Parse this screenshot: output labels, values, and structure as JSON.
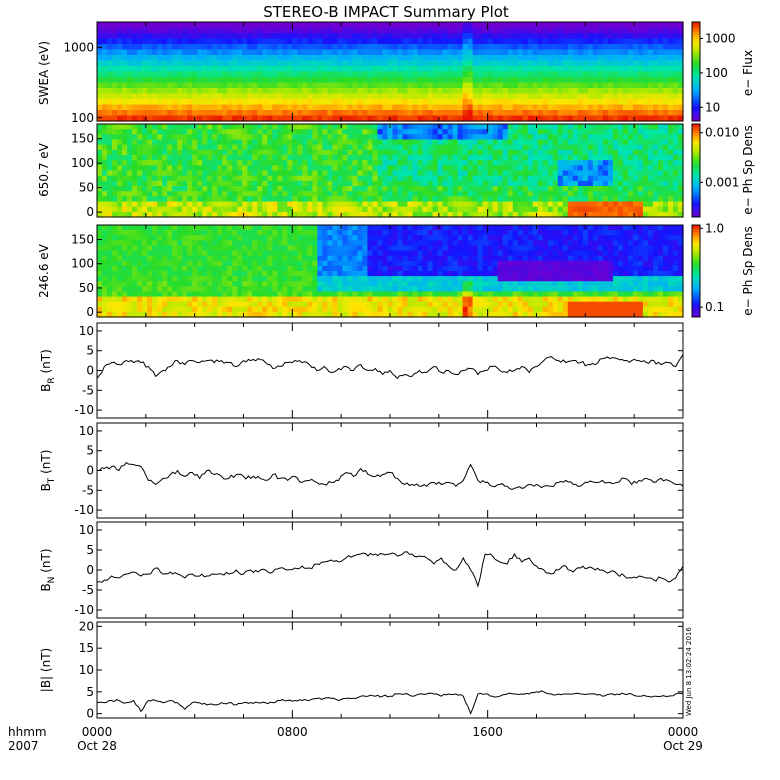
{
  "title": "STEREO-B IMPACT Summary Plot",
  "timestamp": "Wed Jun 8 13:02:24 2016",
  "time_axis": {
    "corner_label_top": "hhmm",
    "corner_label_bottom": "2007",
    "ticks": [
      {
        "hour": 0,
        "label": "0000",
        "date": "Oct 28"
      },
      {
        "hour": 8,
        "label": "0800",
        "date": ""
      },
      {
        "hour": 16,
        "label": "1600",
        "date": ""
      },
      {
        "hour": 24,
        "label": "0000",
        "date": "Oct 29"
      }
    ],
    "range_hours": [
      0,
      24
    ]
  },
  "chart_data": [
    {
      "type": "heatmap",
      "id": "swea",
      "ylabel": "SWEA (eV)",
      "yscale": "log",
      "ylim": [
        90,
        2300
      ],
      "yticks": [
        {
          "v": 1000,
          "label": "1000"
        },
        {
          "v": 100,
          "label": "100"
        }
      ],
      "colorbar": {
        "label": "e− Flux",
        "scale": "log",
        "range": [
          4,
          3000
        ],
        "ticks": [
          {
            "v": 1000,
            "label": "1000"
          },
          {
            "v": 100,
            "label": "100"
          },
          {
            "v": 10,
            "label": "10"
          }
        ]
      },
      "x_events_hours": [
        15.2
      ]
    },
    {
      "type": "heatmap",
      "id": "pad650",
      "ylabel": "650.7 eV",
      "yscale": "linear",
      "ylim": [
        -10,
        180
      ],
      "yticks": [
        {
          "v": 150,
          "label": "150"
        },
        {
          "v": 100,
          "label": "100"
        },
        {
          "v": 50,
          "label": "50"
        },
        {
          "v": 0,
          "label": "0"
        }
      ],
      "colorbar": {
        "label": "e− Ph Sp Dens",
        "scale": "log",
        "range": [
          0.0002,
          0.015
        ],
        "ticks": [
          {
            "v": 0.01,
            "label": "0.010"
          },
          {
            "v": 0.001,
            "label": "0.001"
          }
        ]
      }
    },
    {
      "type": "heatmap",
      "id": "pad246",
      "ylabel": "246.6 eV",
      "yscale": "linear",
      "ylim": [
        -10,
        180
      ],
      "yticks": [
        {
          "v": 150,
          "label": "150"
        },
        {
          "v": 100,
          "label": "100"
        },
        {
          "v": 50,
          "label": "50"
        },
        {
          "v": 0,
          "label": "0"
        }
      ],
      "colorbar": {
        "label": "e− Ph Sp Dens",
        "scale": "log",
        "range": [
          0.075,
          1.1
        ],
        "ticks": [
          {
            "v": 1.0,
            "label": "1.0"
          },
          {
            "v": 0.1,
            "label": "0.1"
          }
        ]
      }
    },
    {
      "type": "line",
      "id": "br",
      "ylabel_main": "B",
      "ylabel_sub": "R",
      "ylabel_unit": " (nT)",
      "ylim": [
        -12,
        12
      ],
      "yticks": [
        10,
        5,
        0,
        -5,
        -10
      ],
      "x_hours": [
        0,
        0.3,
        0.6,
        0.9,
        1.2,
        1.5,
        1.8,
        2.1,
        2.4,
        2.7,
        3.0,
        3.3,
        3.6,
        3.9,
        4.2,
        4.5,
        4.8,
        5.1,
        5.4,
        5.7,
        6.0,
        6.3,
        6.6,
        6.9,
        7.2,
        7.5,
        7.8,
        8.1,
        8.4,
        8.7,
        9.0,
        9.3,
        9.6,
        9.9,
        10.2,
        10.5,
        10.8,
        11.1,
        11.4,
        11.7,
        12.0,
        12.3,
        12.6,
        12.9,
        13.2,
        13.5,
        13.8,
        14.1,
        14.4,
        14.7,
        15.0,
        15.3,
        15.6,
        15.9,
        16.2,
        16.5,
        16.8,
        17.1,
        17.4,
        17.7,
        18.0,
        18.3,
        18.6,
        18.9,
        19.2,
        19.5,
        19.8,
        20.1,
        20.4,
        20.7,
        21.0,
        21.3,
        21.6,
        21.9,
        22.2,
        22.5,
        22.8,
        23.1,
        23.4,
        23.7,
        24.0
      ],
      "y": [
        -2,
        1,
        2,
        1.5,
        2.5,
        2,
        2,
        1,
        -1.5,
        0,
        1,
        2.5,
        1.5,
        2.5,
        2,
        2.5,
        2,
        2.5,
        2,
        1,
        2.5,
        2.5,
        3,
        2,
        0.5,
        1,
        2,
        2.5,
        2,
        1.5,
        0,
        1,
        -0.5,
        0.5,
        1,
        0,
        1.5,
        0,
        0.5,
        -1,
        0,
        -2,
        -1,
        -1.5,
        0,
        -0.5,
        1,
        -0.5,
        0,
        -1,
        0,
        0.5,
        -1,
        0,
        1,
        0,
        -0.5,
        0,
        1,
        -0.5,
        1,
        2.5,
        3.5,
        2.5,
        2,
        2.5,
        2,
        1.5,
        1.5,
        3,
        3,
        3,
        2.5,
        2.5,
        2.5,
        2,
        2.5,
        1.5,
        2,
        1,
        4
      ]
    },
    {
      "type": "line",
      "id": "bt",
      "ylabel_main": "B",
      "ylabel_sub": "T",
      "ylabel_unit": " (nT)",
      "ylim": [
        -12,
        12
      ],
      "yticks": [
        10,
        5,
        0,
        -5,
        -10
      ],
      "x_hours": [
        0,
        0.3,
        0.6,
        0.9,
        1.2,
        1.5,
        1.8,
        2.1,
        2.4,
        2.7,
        3.0,
        3.3,
        3.6,
        3.9,
        4.2,
        4.5,
        4.8,
        5.1,
        5.4,
        5.7,
        6.0,
        6.3,
        6.6,
        6.9,
        7.2,
        7.5,
        7.8,
        8.1,
        8.4,
        8.7,
        9.0,
        9.3,
        9.6,
        9.9,
        10.2,
        10.5,
        10.8,
        11.1,
        11.4,
        11.7,
        12.0,
        12.3,
        12.6,
        12.9,
        13.2,
        13.5,
        13.8,
        14.1,
        14.4,
        14.7,
        15.0,
        15.3,
        15.6,
        15.9,
        16.2,
        16.5,
        16.8,
        17.1,
        17.4,
        17.7,
        18.0,
        18.3,
        18.6,
        18.9,
        19.2,
        19.5,
        19.8,
        20.1,
        20.4,
        20.7,
        21.0,
        21.3,
        21.6,
        21.9,
        22.2,
        22.5,
        22.8,
        23.1,
        23.4,
        23.7,
        24.0
      ],
      "y": [
        0,
        0.5,
        1,
        0,
        2,
        1.5,
        1,
        -2.5,
        -3.5,
        -2,
        -1,
        0,
        -1.5,
        -0.5,
        -2,
        0,
        -1,
        -1.5,
        -2,
        -1,
        -1.5,
        -2,
        -1.5,
        -2.5,
        -1,
        -2,
        -2.5,
        -1.5,
        -3,
        -2.5,
        -3,
        -3.5,
        -3,
        -2.5,
        -0.5,
        -1.5,
        0.5,
        -1,
        -1.5,
        -1,
        -0.5,
        -2,
        -3.5,
        -3.5,
        -4,
        -4,
        -3,
        -3.5,
        -3,
        -4,
        -2.5,
        1.5,
        -2.5,
        -3,
        -4,
        -3.5,
        -4,
        -4.5,
        -4.5,
        -3.5,
        -3.5,
        -4,
        -4,
        -3,
        -2.5,
        -3.5,
        -4,
        -3,
        -3,
        -2.5,
        -3,
        -3,
        -2,
        -3.5,
        -2.5,
        -2,
        -3,
        -2,
        -2.5,
        -3.5,
        -4
      ]
    },
    {
      "type": "line",
      "id": "bn",
      "ylabel_main": "B",
      "ylabel_sub": "N",
      "ylabel_unit": " (nT)",
      "ylim": [
        -12,
        12
      ],
      "yticks": [
        10,
        5,
        0,
        -5,
        -10
      ],
      "x_hours": [
        0,
        0.3,
        0.6,
        0.9,
        1.2,
        1.5,
        1.8,
        2.1,
        2.4,
        2.7,
        3.0,
        3.3,
        3.6,
        3.9,
        4.2,
        4.5,
        4.8,
        5.1,
        5.4,
        5.7,
        6.0,
        6.3,
        6.6,
        6.9,
        7.2,
        7.5,
        7.8,
        8.1,
        8.4,
        8.7,
        9.0,
        9.3,
        9.6,
        9.9,
        10.2,
        10.5,
        10.8,
        11.1,
        11.4,
        11.7,
        12.0,
        12.3,
        12.6,
        12.9,
        13.2,
        13.5,
        13.8,
        14.1,
        14.4,
        14.7,
        15.0,
        15.3,
        15.6,
        15.9,
        16.2,
        16.5,
        16.8,
        17.1,
        17.4,
        17.7,
        18.0,
        18.3,
        18.6,
        18.9,
        19.2,
        19.5,
        19.8,
        20.1,
        20.4,
        20.7,
        21.0,
        21.3,
        21.6,
        21.9,
        22.2,
        22.5,
        22.8,
        23.1,
        23.4,
        23.7,
        24.0
      ],
      "y": [
        -3,
        -2.5,
        -1.5,
        -2,
        -1,
        -0.5,
        -1.5,
        -1,
        0.5,
        -1,
        -0.5,
        -1,
        -2,
        -1,
        -1.5,
        -1.5,
        -1,
        -1,
        -1,
        0,
        -1,
        0,
        -0.5,
        0,
        -0.5,
        0.5,
        0,
        0.5,
        1,
        0.5,
        1.5,
        2,
        2.5,
        2,
        3,
        3.5,
        4,
        3.5,
        4,
        4,
        4,
        3.5,
        4.5,
        4,
        3.5,
        3,
        1.5,
        3,
        1,
        0,
        3,
        0,
        -4,
        4,
        3.5,
        2,
        1.5,
        4,
        2,
        3,
        1,
        0,
        -1,
        0,
        1,
        -0.5,
        0.5,
        0.5,
        0,
        0,
        -0.5,
        -1,
        -1.5,
        -2,
        -1.5,
        -2,
        -2.5,
        -2,
        -3,
        -2,
        1
      ]
    },
    {
      "type": "line",
      "id": "bmag",
      "ylabel_main": "|B|",
      "ylabel_sub": "",
      "ylabel_unit": " (nT)",
      "ylim": [
        -1,
        21
      ],
      "yticks": [
        20,
        15,
        10,
        5,
        0
      ],
      "x_hours": [
        0,
        0.3,
        0.6,
        0.9,
        1.2,
        1.5,
        1.8,
        2.1,
        2.4,
        2.7,
        3.0,
        3.3,
        3.6,
        3.9,
        4.2,
        4.5,
        4.8,
        5.1,
        5.4,
        5.7,
        6.0,
        6.3,
        6.6,
        6.9,
        7.2,
        7.5,
        7.8,
        8.1,
        8.4,
        8.7,
        9.0,
        9.3,
        9.6,
        9.9,
        10.2,
        10.5,
        10.8,
        11.1,
        11.4,
        11.7,
        12.0,
        12.3,
        12.6,
        12.9,
        13.2,
        13.5,
        13.8,
        14.1,
        14.4,
        14.7,
        15.0,
        15.3,
        15.6,
        15.9,
        16.2,
        16.5,
        16.8,
        17.1,
        17.4,
        17.7,
        18.0,
        18.3,
        18.6,
        18.9,
        19.2,
        19.5,
        19.8,
        20.1,
        20.4,
        20.7,
        21.0,
        21.3,
        21.6,
        21.9,
        22.2,
        22.5,
        22.8,
        23.1,
        23.4,
        23.7,
        24.0
      ],
      "y": [
        2.5,
        2.5,
        3,
        3,
        2.5,
        3,
        0.5,
        3,
        3,
        2.5,
        3,
        2.5,
        1,
        2.5,
        2.5,
        2,
        2,
        2.5,
        2.5,
        2,
        2.5,
        2.5,
        2.5,
        2.5,
        2.5,
        3,
        3,
        3,
        3,
        3,
        3.5,
        3.5,
        3.5,
        3,
        3.5,
        3.5,
        4,
        4,
        4,
        4,
        4,
        4.5,
        4.5,
        4,
        4.5,
        4.5,
        4.5,
        4,
        4.5,
        4.5,
        4,
        0,
        4.5,
        4.5,
        4,
        4,
        4.5,
        4.5,
        4.5,
        4.5,
        5,
        5,
        4.5,
        4.5,
        4.5,
        4.5,
        4.5,
        4.5,
        4.5,
        4,
        4.5,
        4.5,
        4.5,
        4.5,
        4,
        4,
        4,
        4,
        4,
        4.5,
        4.5
      ]
    }
  ]
}
